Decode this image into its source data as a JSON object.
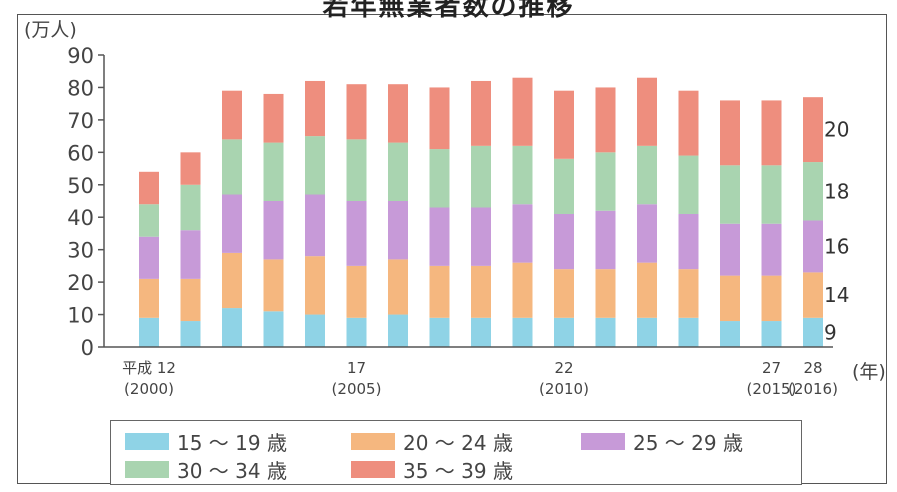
{
  "page": {
    "title": "若年無業者数の推移"
  },
  "chart_data": {
    "type": "bar",
    "stacked": true,
    "unit_label": "(万人)",
    "x_unit": "(年)",
    "ylim": [
      0,
      90
    ],
    "yticks": [
      0,
      10,
      20,
      30,
      40,
      50,
      60,
      70,
      80,
      90
    ],
    "x_labels": [
      {
        "index": 0,
        "line1": "平成 12",
        "line2": "(2000)"
      },
      {
        "index": 5,
        "line1": "17",
        "line2": "(2005)"
      },
      {
        "index": 10,
        "line1": "22",
        "line2": "(2010)"
      },
      {
        "index": 15,
        "line1": "27",
        "line2": "(2015)"
      },
      {
        "index": 16,
        "line1": "28",
        "line2": "(2016)"
      }
    ],
    "categories": [
      "2000",
      "2001",
      "2002",
      "2003",
      "2004",
      "2005",
      "2006",
      "2007",
      "2008",
      "2009",
      "2010",
      "2011",
      "2012",
      "2013",
      "2014",
      "2015",
      "2016"
    ],
    "series": [
      {
        "name": "15 ～ 19 歳",
        "color": "#8fd3e6",
        "values": [
          9,
          8,
          12,
          11,
          10,
          9,
          10,
          9,
          9,
          9,
          9,
          9,
          9,
          9,
          8,
          8,
          9
        ]
      },
      {
        "name": "20 ～ 24 歳",
        "color": "#f5b77f",
        "values": [
          12,
          13,
          17,
          16,
          18,
          16,
          17,
          16,
          16,
          17,
          15,
          15,
          17,
          15,
          14,
          14,
          14
        ]
      },
      {
        "name": "25 ～ 29 歳",
        "color": "#c79ad8",
        "values": [
          13,
          15,
          18,
          18,
          19,
          20,
          18,
          18,
          18,
          18,
          17,
          18,
          18,
          17,
          16,
          16,
          16
        ]
      },
      {
        "name": "30 ～ 34 歳",
        "color": "#a9d4b0",
        "values": [
          10,
          14,
          17,
          18,
          18,
          19,
          18,
          18,
          19,
          18,
          17,
          18,
          18,
          18,
          18,
          18,
          18
        ]
      },
      {
        "name": "35 ～ 39 歳",
        "color": "#ee8e7e",
        "values": [
          10,
          10,
          15,
          15,
          17,
          17,
          18,
          19,
          20,
          21,
          21,
          20,
          21,
          20,
          20,
          20,
          20
        ]
      }
    ],
    "last_bar_labels": [
      "9",
      "14",
      "16",
      "18",
      "20"
    ],
    "grid": false,
    "legend_position": "bottom"
  }
}
